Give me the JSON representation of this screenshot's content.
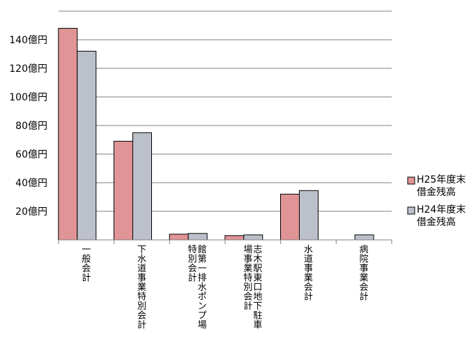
{
  "chart_data": {
    "type": "bar",
    "categories": [
      [
        "一般会計"
      ],
      [
        "下水道事業特別会計"
      ],
      [
        "館第一排水ポンプ場",
        "特別会計"
      ],
      [
        "志木駅東口地下駐車",
        "場事業特別会計"
      ],
      [
        "水道事業会計"
      ],
      [
        "病院事業会計"
      ]
    ],
    "series": [
      {
        "name": [
          "H25年度末",
          "借金残高"
        ],
        "color": "#e09496",
        "values": [
          148,
          69,
          4,
          3,
          32,
          0
        ]
      },
      {
        "name": [
          "H24年度末",
          "借金残高"
        ],
        "color": "#bcc0cb",
        "values": [
          132,
          75,
          4.5,
          3.5,
          34.5,
          3.5
        ]
      }
    ],
    "ylim": [
      0,
      160
    ],
    "yticks": [
      {
        "value": 20,
        "label": "20億円"
      },
      {
        "value": 40,
        "label": "40億円"
      },
      {
        "value": 60,
        "label": "60億円"
      },
      {
        "value": 80,
        "label": "80億円"
      },
      {
        "value": 100,
        "label": "100億円"
      },
      {
        "value": 120,
        "label": "120億円"
      },
      {
        "value": 140,
        "label": "140億円"
      }
    ],
    "grid": true,
    "legend": "right"
  }
}
